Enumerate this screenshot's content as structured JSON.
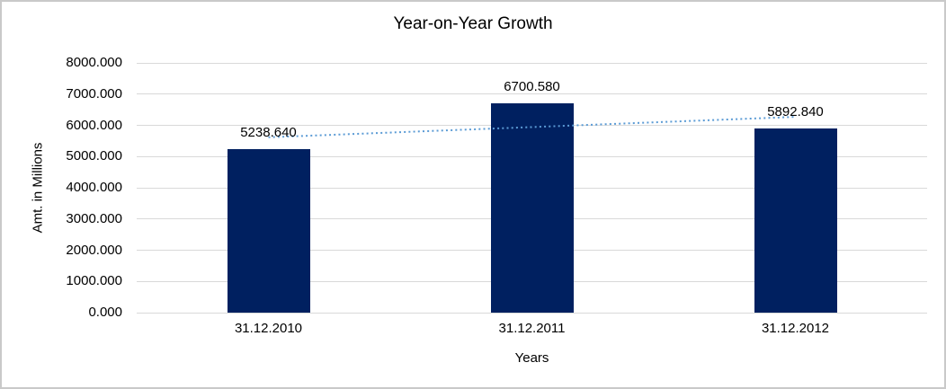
{
  "window": {
    "background": "#FFFFFF",
    "border_color": "#C9C9C9"
  },
  "chart_data": {
    "type": "bar",
    "title": "Year-on-Year Growth",
    "xlabel": "Years",
    "ylabel": "Amt. in Millions",
    "categories": [
      "31.12.2010",
      "31.12.2011",
      "31.12.2012"
    ],
    "values": [
      5238.64,
      6700.58,
      5892.84
    ],
    "data_labels": [
      "5238.640",
      "6700.580",
      "5892.840"
    ],
    "ylim": [
      0,
      8000
    ],
    "ytick_step": 1000,
    "ytick_labels": [
      "0.000",
      "1000.000",
      "2000.000",
      "3000.000",
      "4000.000",
      "5000.000",
      "6000.000",
      "7000.000",
      "8000.000"
    ],
    "grid": true,
    "legend": "none",
    "bar_color": "#002060",
    "gridline_color": "#D9D9D9",
    "text_color": "#000000",
    "trendline": {
      "type": "linear",
      "style": "dotted",
      "color": "#5B9BD5"
    }
  }
}
